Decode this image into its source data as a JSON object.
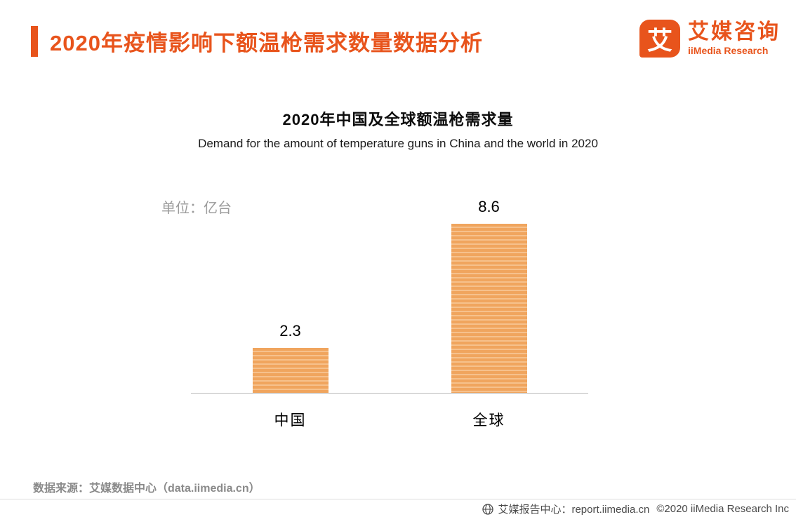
{
  "colors": {
    "accent": "#E8541C",
    "bar": "#F0A55E",
    "bar_stripe": "#F6C18C",
    "axis": "#BBBBBB"
  },
  "header": {
    "title": "2020年疫情影响下额温枪需求数量数据分析"
  },
  "logo": {
    "icon_text": "艾",
    "name_cn": "艾媒咨询",
    "name_en": "iiMedia Research"
  },
  "chart": {
    "title": "2020年中国及全球额温枪需求量",
    "subtitle": "Demand for the amount of temperature guns in China and the world in 2020",
    "unit_label": "单位：亿台"
  },
  "chart_data": {
    "type": "bar",
    "categories": [
      "中国",
      "全球"
    ],
    "values": [
      2.3,
      8.6
    ],
    "title": "2020年中国及全球额温枪需求量",
    "subtitle": "Demand for the amount of temperature guns in China and the world in 2020",
    "xlabel": "",
    "ylabel": "单位：亿台",
    "ylim": [
      0,
      10
    ],
    "grid": false,
    "legend": "none",
    "bar_color": "#F0A55E"
  },
  "footer": {
    "source": "数据来源：艾媒数据中心（data.iimedia.cn）",
    "report_center": "艾媒报告中心：report.iimedia.cn",
    "copyright": "©2020  iiMedia Research Inc"
  }
}
